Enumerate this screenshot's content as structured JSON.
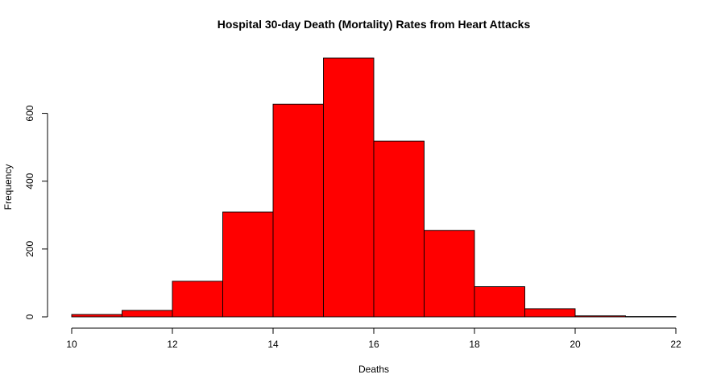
{
  "chart_data": {
    "type": "bar",
    "title": "Hospital 30-day Death (Mortality) Rates from Heart Attacks",
    "xlabel": "Deaths",
    "ylabel": "Frequency",
    "bins": [
      {
        "start": 10,
        "end": 11,
        "count": 7
      },
      {
        "start": 11,
        "end": 12,
        "count": 19
      },
      {
        "start": 12,
        "end": 13,
        "count": 105
      },
      {
        "start": 13,
        "end": 14,
        "count": 309
      },
      {
        "start": 14,
        "end": 15,
        "count": 627
      },
      {
        "start": 15,
        "end": 16,
        "count": 763
      },
      {
        "start": 16,
        "end": 17,
        "count": 518
      },
      {
        "start": 17,
        "end": 18,
        "count": 255
      },
      {
        "start": 18,
        "end": 19,
        "count": 89
      },
      {
        "start": 19,
        "end": 20,
        "count": 24
      },
      {
        "start": 20,
        "end": 21,
        "count": 3
      },
      {
        "start": 21,
        "end": 22,
        "count": 1
      }
    ],
    "xlim": [
      10,
      22
    ],
    "ylim": [
      0,
      763
    ],
    "x_ticks": [
      "10",
      "12",
      "14",
      "16",
      "18",
      "20",
      "22"
    ],
    "y_ticks": [
      "0",
      "200",
      "400",
      "600"
    ],
    "bar_color": "#ff0000",
    "grid": false,
    "legend": "none"
  }
}
